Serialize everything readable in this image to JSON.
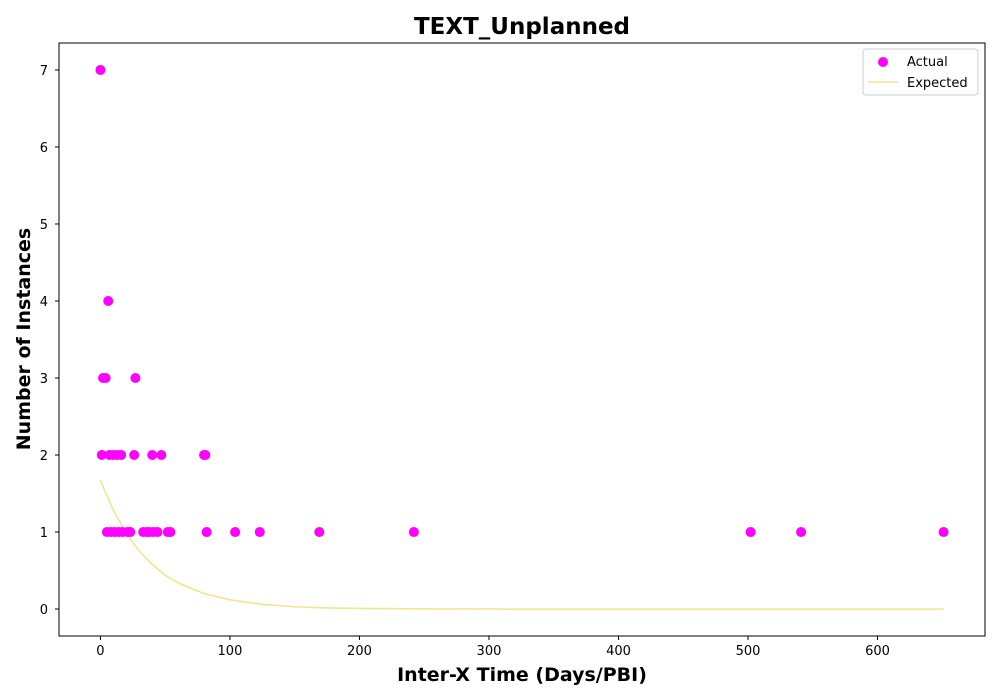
{
  "chart_data": {
    "type": "scatter",
    "title": "TEXT_Unplanned",
    "xlabel": "Inter-X Time (Days/PBI)",
    "ylabel": "Number of Instances",
    "xlim": [
      -32,
      683
    ],
    "ylim": [
      -0.35,
      7.35
    ],
    "xticks": [
      0,
      100,
      200,
      300,
      400,
      500,
      600
    ],
    "yticks": [
      0,
      1,
      2,
      3,
      4,
      5,
      6,
      7
    ],
    "grid": false,
    "legend": {
      "position": "top-right",
      "entries": [
        {
          "label": "Actual",
          "marker": "circle",
          "color": "#ff00ff"
        },
        {
          "label": "Expected",
          "marker": "line",
          "color": "#f0e68c"
        }
      ]
    },
    "series": [
      {
        "name": "Actual",
        "kind": "scatter",
        "color": "#ff00ff",
        "points": [
          [
            0,
            7
          ],
          [
            1,
            2
          ],
          [
            2,
            3
          ],
          [
            4,
            3
          ],
          [
            5,
            1
          ],
          [
            6,
            4
          ],
          [
            7,
            2
          ],
          [
            8,
            1
          ],
          [
            10,
            2
          ],
          [
            11,
            1
          ],
          [
            13,
            2
          ],
          [
            14,
            1
          ],
          [
            16,
            2
          ],
          [
            17,
            1
          ],
          [
            21,
            1
          ],
          [
            23,
            1
          ],
          [
            26,
            2
          ],
          [
            27,
            3
          ],
          [
            33,
            1
          ],
          [
            36,
            1
          ],
          [
            38,
            1
          ],
          [
            40,
            2
          ],
          [
            41,
            1
          ],
          [
            44,
            1
          ],
          [
            47,
            2
          ],
          [
            52,
            1
          ],
          [
            54,
            1
          ],
          [
            80,
            2
          ],
          [
            81,
            2
          ],
          [
            82,
            1
          ],
          [
            104,
            1
          ],
          [
            123,
            1
          ],
          [
            169,
            1
          ],
          [
            242,
            1
          ],
          [
            502,
            1
          ],
          [
            541,
            1
          ],
          [
            651,
            1
          ]
        ]
      },
      {
        "name": "Expected",
        "kind": "line",
        "color": "#f0e68c",
        "curve": "exponential-decay",
        "points": [
          [
            0,
            1.67
          ],
          [
            10,
            1.28
          ],
          [
            20,
            0.98
          ],
          [
            30,
            0.75
          ],
          [
            40,
            0.58
          ],
          [
            50,
            0.44
          ],
          [
            60,
            0.34
          ],
          [
            80,
            0.2
          ],
          [
            100,
            0.12
          ],
          [
            125,
            0.06
          ],
          [
            150,
            0.03
          ],
          [
            175,
            0.015
          ],
          [
            200,
            0.008
          ],
          [
            250,
            0.002
          ],
          [
            300,
            0.0005
          ],
          [
            400,
            0.0
          ],
          [
            500,
            0.0
          ],
          [
            600,
            0.0
          ],
          [
            651,
            0.0
          ]
        ]
      }
    ]
  }
}
